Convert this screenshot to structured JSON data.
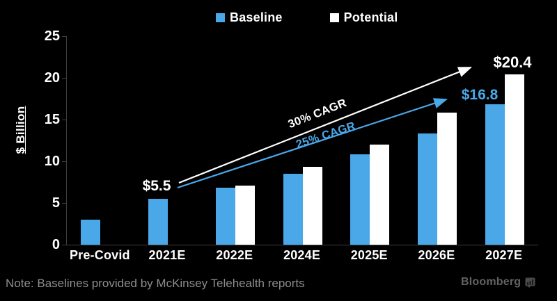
{
  "colors": {
    "background": "#000000",
    "baseline_blue": "#4AA8E9",
    "potential_white": "#FFFFFF",
    "axis_gray": "#3E3E3E",
    "note_gray": "#8D8D8D",
    "brand_gray": "#636363"
  },
  "chart_data": {
    "type": "bar",
    "title": "",
    "ylabel": "$ Billion",
    "xlabel": "",
    "ylim": [
      0,
      25
    ],
    "yticks": [
      0,
      5,
      10,
      15,
      20,
      25
    ],
    "grid": false,
    "legend_position": "top",
    "categories": [
      "Pre-Covid",
      "2021E",
      "2022E",
      "2024E",
      "2025E",
      "2026E",
      "2027E"
    ],
    "series": [
      {
        "name": "Baseline",
        "color": "#4AA8E9",
        "values": [
          3.0,
          5.5,
          6.8,
          8.5,
          10.8,
          13.3,
          16.8
        ]
      },
      {
        "name": "Potential",
        "color": "#FFFFFF",
        "values": [
          null,
          null,
          7.1,
          9.3,
          12.0,
          15.8,
          20.4
        ]
      }
    ],
    "annotations": [
      {
        "text": "$5.5",
        "color": "#FFFFFF",
        "target": "2021E baseline bar"
      },
      {
        "text": "$16.8",
        "color": "#4AA8E9",
        "target": "2027E baseline bar"
      },
      {
        "text": "$20.4",
        "color": "#FFFFFF",
        "target": "2027E potential bar"
      },
      {
        "text": "30% CAGR",
        "color": "#FFFFFF",
        "target": "potential growth arrow"
      },
      {
        "text": "25% CAGR",
        "color": "#4AA8E9",
        "target": "baseline growth arrow"
      }
    ]
  },
  "footer": {
    "note": "Note: Baselines provided by McKinsey Telehealth reports",
    "brand": "Bloomberg"
  }
}
